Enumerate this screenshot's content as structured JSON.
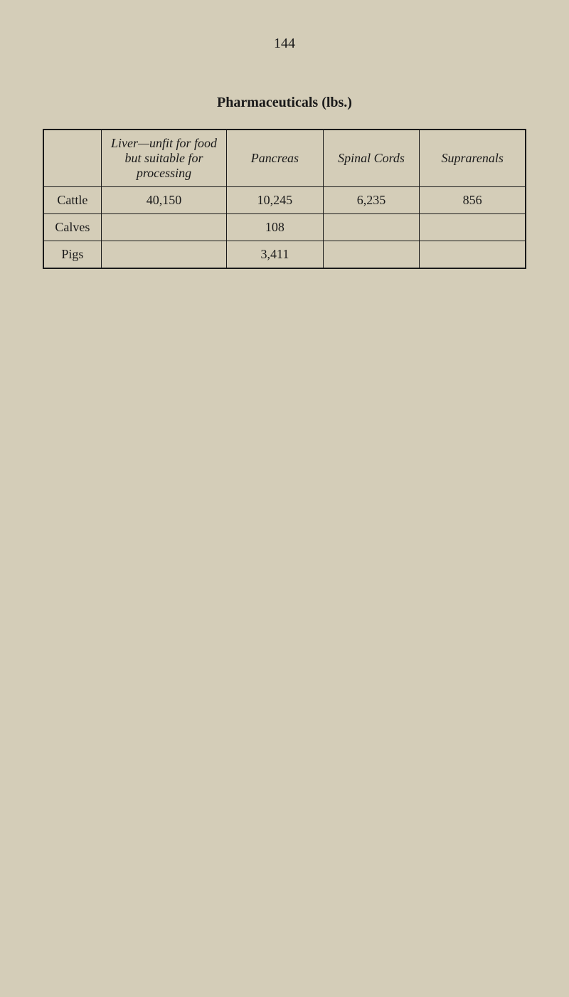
{
  "page_number": "144",
  "table": {
    "title": "Pharmaceuticals (lbs.)",
    "headers": {
      "blank": "",
      "liver": "Liver—unfit for food but suitable for processing",
      "pancreas": "Pancreas",
      "spinal": "Spinal Cords",
      "suprarenals": "Suprarenals"
    },
    "rows": [
      {
        "label": "Cattle",
        "liver": "40,150",
        "pancreas": "10,245",
        "spinal": "6,235",
        "suprarenals": "856"
      },
      {
        "label": "Calves",
        "liver": "",
        "pancreas": "108",
        "spinal": "",
        "suprarenals": ""
      },
      {
        "label": "Pigs",
        "liver": "",
        "pancreas": "3,411",
        "spinal": "",
        "suprarenals": ""
      }
    ]
  },
  "colors": {
    "background": "#d4cdb8",
    "text": "#1a1a1a",
    "border": "#1a1a1a"
  }
}
